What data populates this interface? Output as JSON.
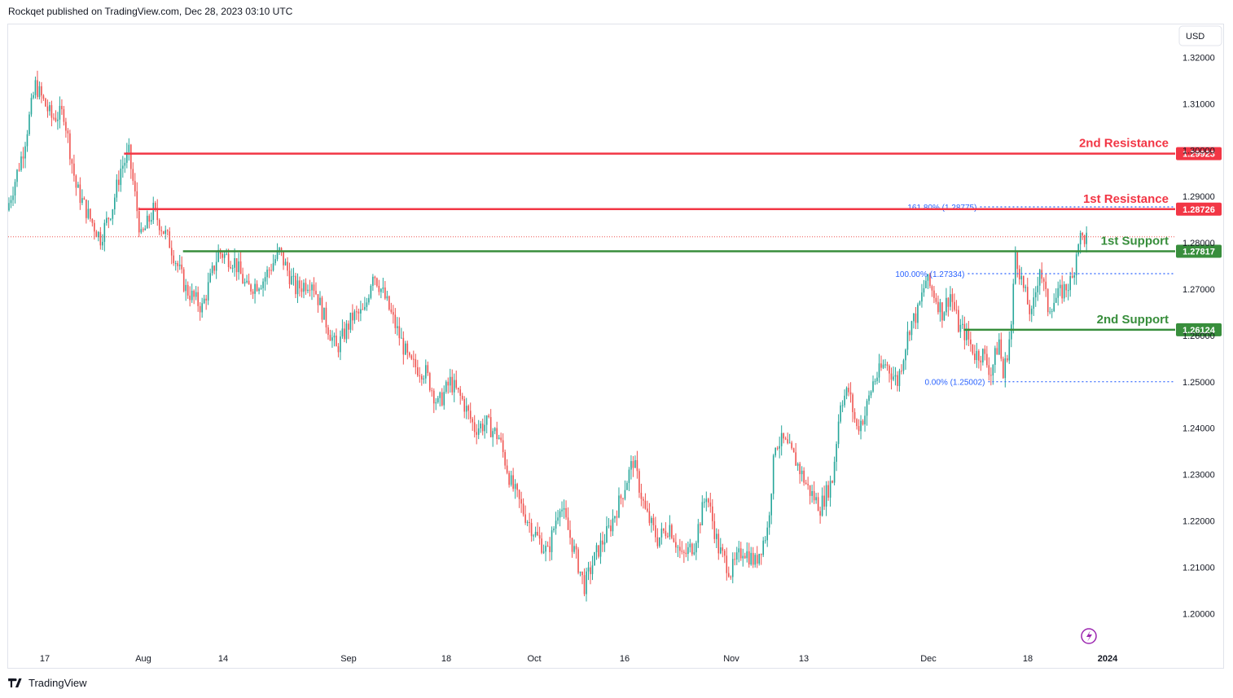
{
  "header": {
    "attribution": "Rockqet published on TradingView.com, Dec 28, 2023 03:10 UTC"
  },
  "footer": {
    "brand": "TradingView",
    "logo_icon": "tradingview-logo-icon"
  },
  "colors": {
    "up": "#26a69a",
    "down": "#ef5350",
    "resistance": "#f23645",
    "support": "#388e3c",
    "fib": "#2962ff",
    "grid_text": "#131722"
  },
  "chart_data": {
    "type": "candlestick",
    "currency_button": "USD",
    "y_ticks": [
      "1.32000",
      "1.31000",
      "1.30000",
      "1.29000",
      "1.28000",
      "1.27000",
      "1.26000",
      "1.25000",
      "1.24000",
      "1.23000",
      "1.22000",
      "1.21000",
      "1.20000"
    ],
    "x_ticks": [
      "17",
      "Aug",
      "14",
      "Sep",
      "18",
      "Oct",
      "16",
      "Nov",
      "13",
      "Dec",
      "18",
      "2024"
    ],
    "ylim": [
      1.1975,
      1.3325
    ],
    "levels": [
      {
        "name": "2nd Resistance",
        "price": 1.29923,
        "label": "1.29923",
        "kind": "resistance"
      },
      {
        "name": "1st Resistance",
        "price": 1.28726,
        "label": "1.28726",
        "kind": "resistance"
      },
      {
        "name": "1st Support",
        "price": 1.27817,
        "label": "1.27817",
        "kind": "support"
      },
      {
        "name": "2nd Support",
        "price": 1.26124,
        "label": "1.26124",
        "kind": "support"
      }
    ],
    "fib_levels": [
      {
        "label": "161.80% (1.28775)",
        "price": 1.28775
      },
      {
        "label": "100.00% (1.27334)",
        "price": 1.27334
      },
      {
        "label": "0.00% (1.25002)",
        "price": 1.25002
      }
    ],
    "last_price": 1.2813,
    "path": [
      [
        0,
        1.287
      ],
      [
        8,
        1.3
      ],
      [
        14,
        1.314
      ],
      [
        22,
        1.307
      ],
      [
        28,
        1.308
      ],
      [
        34,
        1.292
      ],
      [
        40,
        1.286
      ],
      [
        46,
        1.281
      ],
      [
        52,
        1.288
      ],
      [
        56,
        1.296
      ],
      [
        60,
        1.2992
      ],
      [
        66,
        1.281
      ],
      [
        72,
        1.287
      ],
      [
        80,
        1.28
      ],
      [
        88,
        1.27
      ],
      [
        96,
        1.266
      ],
      [
        104,
        1.278
      ],
      [
        112,
        1.276
      ],
      [
        118,
        1.27
      ],
      [
        126,
        1.272
      ],
      [
        134,
        1.278
      ],
      [
        142,
        1.27
      ],
      [
        150,
        1.272
      ],
      [
        156,
        1.264
      ],
      [
        162,
        1.257
      ],
      [
        170,
        1.264
      ],
      [
        176,
        1.265
      ],
      [
        180,
        1.274
      ],
      [
        186,
        1.268
      ],
      [
        192,
        1.261
      ],
      [
        198,
        1.254
      ],
      [
        206,
        1.252
      ],
      [
        212,
        1.245
      ],
      [
        218,
        1.25
      ],
      [
        224,
        1.246
      ],
      [
        230,
        1.24
      ],
      [
        236,
        1.241
      ],
      [
        242,
        1.238
      ],
      [
        248,
        1.228
      ],
      [
        254,
        1.222
      ],
      [
        260,
        1.217
      ],
      [
        266,
        1.213
      ],
      [
        272,
        1.224
      ],
      [
        278,
        1.215
      ],
      [
        284,
        1.206
      ],
      [
        290,
        1.213
      ],
      [
        296,
        1.218
      ],
      [
        302,
        1.225
      ],
      [
        308,
        1.233
      ],
      [
        314,
        1.222
      ],
      [
        320,
        1.216
      ],
      [
        326,
        1.219
      ],
      [
        332,
        1.212
      ],
      [
        338,
        1.215
      ],
      [
        344,
        1.226
      ],
      [
        350,
        1.214
      ],
      [
        356,
        1.209
      ],
      [
        362,
        1.214
      ],
      [
        368,
        1.211
      ],
      [
        374,
        1.218
      ],
      [
        378,
        1.237
      ],
      [
        382,
        1.237
      ],
      [
        388,
        1.233
      ],
      [
        394,
        1.227
      ],
      [
        400,
        1.223
      ],
      [
        406,
        1.229
      ],
      [
        410,
        1.246
      ],
      [
        414,
        1.248
      ],
      [
        418,
        1.24
      ],
      [
        422,
        1.243
      ],
      [
        426,
        1.25
      ],
      [
        432,
        1.254
      ],
      [
        438,
        1.25
      ],
      [
        444,
        1.262
      ],
      [
        448,
        1.265
      ],
      [
        452,
        1.272
      ],
      [
        456,
        1.269
      ],
      [
        460,
        1.265
      ],
      [
        464,
        1.269
      ],
      [
        468,
        1.262
      ],
      [
        472,
        1.26
      ],
      [
        476,
        1.256
      ],
      [
        480,
        1.256
      ],
      [
        484,
        1.252
      ],
      [
        488,
        1.259
      ],
      [
        490,
        1.251
      ],
      [
        494,
        1.262
      ],
      [
        496,
        1.278
      ],
      [
        500,
        1.27
      ],
      [
        504,
        1.264
      ],
      [
        508,
        1.275
      ],
      [
        512,
        1.266
      ],
      [
        516,
        1.268
      ],
      [
        520,
        1.27
      ],
      [
        524,
        1.272
      ],
      [
        527,
        1.281
      ]
    ],
    "path_x_range": [
      0,
      530
    ],
    "x_axis_range": [
      0,
      574
    ]
  }
}
